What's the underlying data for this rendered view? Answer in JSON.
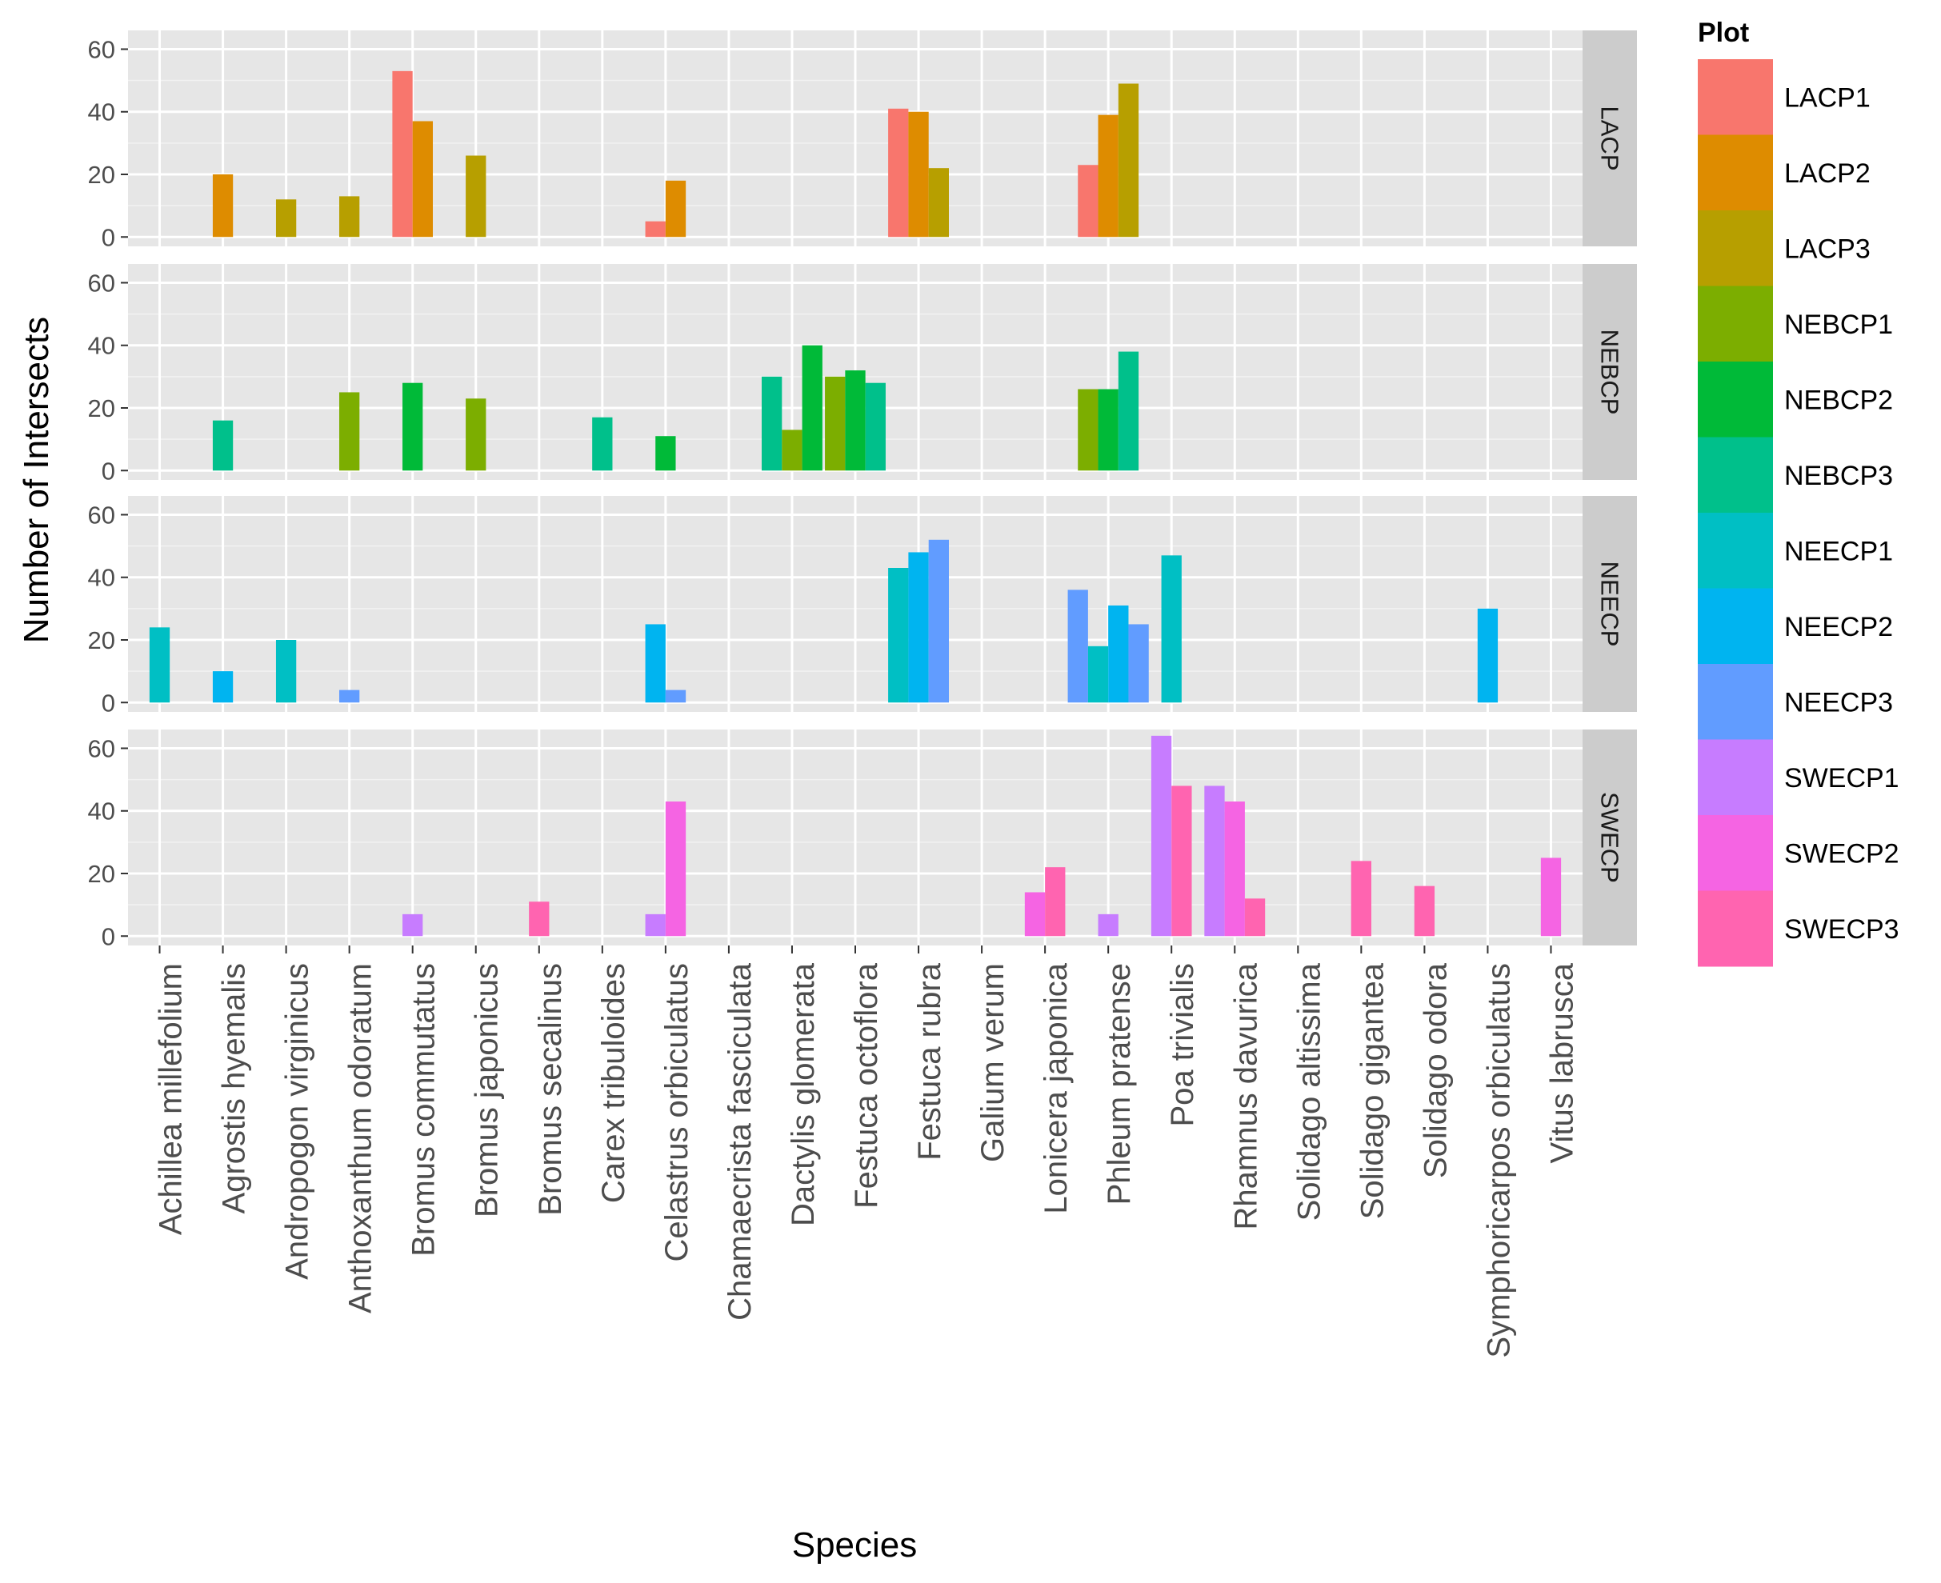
{
  "chart_data": {
    "type": "bar",
    "xlabel": "Species",
    "ylabel": "Number of Intersects",
    "ylim": [
      -3,
      66
    ],
    "yticks": [
      "0",
      "20",
      "40",
      "60"
    ],
    "ytick_values": [
      0,
      20,
      40,
      60
    ],
    "categories": [
      "Achillea millefolium",
      "Agrostis hyemalis",
      "Andropogon virginicus",
      "Anthoxanthum odoratum",
      "Bromus commutatus",
      "Bromus japonicus",
      "Bromus secalinus",
      "Carex tribuloides",
      "Celastrus orbiculatus",
      "Chamaecrista fasciculata",
      "Dactylis glomerata",
      "Festuca octoflora",
      "Festuca rubra",
      "Galium verum",
      "Lonicera japonica",
      "Phleum pratense",
      "Poa trivialis",
      "Rhamnus davurica",
      "Solidago altissima",
      "Solidago gigantea",
      "Solidago odora",
      "Symphoricarpos orbiculatus",
      "Vitus labrusca"
    ],
    "legend": {
      "title": "Plot",
      "position": "right",
      "entries": [
        {
          "name": "LACP1",
          "color": "#F8766D"
        },
        {
          "name": "LACP2",
          "color": "#DE8C00"
        },
        {
          "name": "LACP3",
          "color": "#B79F00"
        },
        {
          "name": "NEBCP1",
          "color": "#7CAE00"
        },
        {
          "name": "NEBCP2",
          "color": "#00BA38"
        },
        {
          "name": "NEBCP3",
          "color": "#00C08B"
        },
        {
          "name": "NEECP1",
          "color": "#00BFC4"
        },
        {
          "name": "NEECP2",
          "color": "#00B4F0"
        },
        {
          "name": "NEECP3",
          "color": "#619CFF"
        },
        {
          "name": "SWECP1",
          "color": "#C77CFF"
        },
        {
          "name": "SWECP2",
          "color": "#F564E3"
        },
        {
          "name": "SWECP3",
          "color": "#FF64B0"
        }
      ]
    },
    "facets": [
      {
        "name": "LACP",
        "bars": [
          {
            "category": "Agrostis hyemalis",
            "items": [
              {
                "plot": "LACP2",
                "value": 20
              }
            ]
          },
          {
            "category": "Andropogon virginicus",
            "items": [
              {
                "plot": "LACP3",
                "value": 12
              }
            ]
          },
          {
            "category": "Anthoxanthum odoratum",
            "items": [
              {
                "plot": "LACP3",
                "value": 13
              }
            ]
          },
          {
            "category": "Bromus commutatus",
            "items": [
              {
                "plot": "LACP1",
                "value": 53
              },
              {
                "plot": "LACP2",
                "value": 37
              }
            ]
          },
          {
            "category": "Bromus japonicus",
            "items": [
              {
                "plot": "LACP3",
                "value": 26
              }
            ]
          },
          {
            "category": "Celastrus orbiculatus",
            "items": [
              {
                "plot": "LACP1",
                "value": 5
              },
              {
                "plot": "LACP2",
                "value": 18
              }
            ]
          },
          {
            "category": "Festuca rubra",
            "items": [
              {
                "plot": "LACP1",
                "value": 41
              },
              {
                "plot": "LACP2",
                "value": 40
              },
              {
                "plot": "LACP3",
                "value": 22
              }
            ]
          },
          {
            "category": "Phleum pratense",
            "items": [
              {
                "plot": "LACP1",
                "value": 23
              },
              {
                "plot": "LACP2",
                "value": 39
              },
              {
                "plot": "LACP3",
                "value": 49
              }
            ]
          }
        ]
      },
      {
        "name": "NEBCP",
        "bars": [
          {
            "category": "Agrostis hyemalis",
            "items": [
              {
                "plot": "NEBCP3",
                "value": 16
              }
            ]
          },
          {
            "category": "Anthoxanthum odoratum",
            "items": [
              {
                "plot": "NEBCP1",
                "value": 25
              }
            ]
          },
          {
            "category": "Bromus commutatus",
            "items": [
              {
                "plot": "NEBCP2",
                "value": 28
              }
            ]
          },
          {
            "category": "Bromus japonicus",
            "items": [
              {
                "plot": "NEBCP1",
                "value": 23
              }
            ]
          },
          {
            "category": "Carex tribuloides",
            "items": [
              {
                "plot": "NEBCP3",
                "value": 17
              }
            ]
          },
          {
            "category": "Celastrus orbiculatus",
            "items": [
              {
                "plot": "NEBCP2",
                "value": 11
              }
            ]
          },
          {
            "category": "Dactylis glomerata",
            "items": [
              {
                "plot": "NEBCP3",
                "value": 30
              },
              {
                "plot": "NEBCP1",
                "value": 13
              },
              {
                "plot": "NEBCP2",
                "value": 40
              }
            ]
          },
          {
            "category": "Festuca octoflora",
            "items": [
              {
                "plot": "NEBCP1",
                "value": 30
              },
              {
                "plot": "NEBCP2",
                "value": 32
              },
              {
                "plot": "NEBCP3",
                "value": 28
              }
            ]
          },
          {
            "category": "Phleum pratense",
            "items": [
              {
                "plot": "NEBCP1",
                "value": 26
              },
              {
                "plot": "NEBCP2",
                "value": 26
              },
              {
                "plot": "NEBCP3",
                "value": 38
              }
            ]
          }
        ]
      },
      {
        "name": "NEECP",
        "bars": [
          {
            "category": "Achillea millefolium",
            "items": [
              {
                "plot": "NEECP1",
                "value": 24
              }
            ]
          },
          {
            "category": "Agrostis hyemalis",
            "items": [
              {
                "plot": "NEECP2",
                "value": 10
              }
            ]
          },
          {
            "category": "Andropogon virginicus",
            "items": [
              {
                "plot": "NEECP1",
                "value": 20
              }
            ]
          },
          {
            "category": "Anthoxanthum odoratum",
            "items": [
              {
                "plot": "NEECP3",
                "value": 4
              }
            ]
          },
          {
            "category": "Celastrus orbiculatus",
            "items": [
              {
                "plot": "NEECP2",
                "value": 25
              },
              {
                "plot": "NEECP3",
                "value": 4
              }
            ]
          },
          {
            "category": "Festuca rubra",
            "items": [
              {
                "plot": "NEECP1",
                "value": 43
              },
              {
                "plot": "NEECP2",
                "value": 48
              },
              {
                "plot": "NEECP3",
                "value": 52
              }
            ]
          },
          {
            "category": "Phleum pratense",
            "items": [
              {
                "plot": "NEECP3",
                "value": 36
              },
              {
                "plot": "NEECP1",
                "value": 18
              },
              {
                "plot": "NEECP2",
                "value": 31
              },
              {
                "plot": "NEECP3",
                "value": 25
              }
            ]
          },
          {
            "category": "Poa trivialis",
            "items": [
              {
                "plot": "NEECP1",
                "value": 47
              }
            ]
          },
          {
            "category": "Symphoricarpos orbiculatus",
            "items": [
              {
                "plot": "NEECP2",
                "value": 30
              }
            ]
          }
        ]
      },
      {
        "name": "SWECP",
        "bars": [
          {
            "category": "Bromus commutatus",
            "items": [
              {
                "plot": "SWECP1",
                "value": 7
              }
            ]
          },
          {
            "category": "Bromus secalinus",
            "items": [
              {
                "plot": "SWECP3",
                "value": 11
              }
            ]
          },
          {
            "category": "Celastrus orbiculatus",
            "items": [
              {
                "plot": "SWECP1",
                "value": 7
              },
              {
                "plot": "SWECP2",
                "value": 43
              }
            ]
          },
          {
            "category": "Lonicera japonica",
            "items": [
              {
                "plot": "SWECP2",
                "value": 14
              },
              {
                "plot": "SWECP3",
                "value": 22
              }
            ]
          },
          {
            "category": "Phleum pratense",
            "items": [
              {
                "plot": "SWECP1",
                "value": 7
              }
            ]
          },
          {
            "category": "Poa trivialis",
            "items": [
              {
                "plot": "SWECP1",
                "value": 64
              },
              {
                "plot": "SWECP3",
                "value": 48
              }
            ]
          },
          {
            "category": "Rhamnus davurica",
            "items": [
              {
                "plot": "SWECP1",
                "value": 48
              },
              {
                "plot": "SWECP2",
                "value": 43
              },
              {
                "plot": "SWECP3",
                "value": 12
              }
            ]
          },
          {
            "category": "Solidago gigantea",
            "items": [
              {
                "plot": "SWECP3",
                "value": 24
              }
            ]
          },
          {
            "category": "Solidago odora",
            "items": [
              {
                "plot": "SWECP3",
                "value": 16
              }
            ]
          },
          {
            "category": "Vitus labrusca",
            "items": [
              {
                "plot": "SWECP2",
                "value": 25
              }
            ]
          }
        ]
      }
    ]
  }
}
